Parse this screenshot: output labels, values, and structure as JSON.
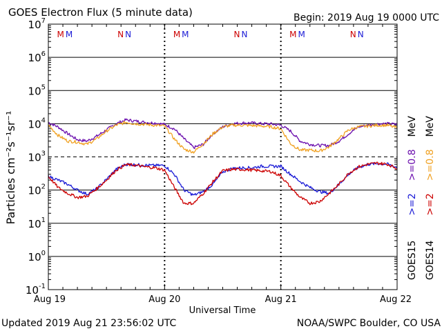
{
  "header": {
    "title": "GOES Electron Flux (5 minute data)",
    "begin": "Begin: 2019 Aug 19 0000 UTC"
  },
  "footer": {
    "updated": "Updated 2019 Aug 21 23:56:02 UTC",
    "credit": "NOAA/SWPC Boulder, CO USA"
  },
  "chart_data": {
    "type": "line",
    "title": "GOES Electron Flux (5 minute data)",
    "xlabel": "Universal Time",
    "ylabel": "Particles cm⁻²s⁻¹sr⁻¹",
    "y_scale": "log",
    "ylim": [
      0.1,
      10000000
    ],
    "xlim": [
      "2019-08-19 00:00",
      "2019-08-22 00:00"
    ],
    "x_ticks": [
      "Aug 19",
      "Aug 20",
      "Aug 21",
      "Aug 22"
    ],
    "y_ticks": [
      {
        "base": "10",
        "exp": "7"
      },
      {
        "base": "10",
        "exp": "6"
      },
      {
        "base": "10",
        "exp": "5"
      },
      {
        "base": "10",
        "exp": "4"
      },
      {
        "base": "10",
        "exp": "3"
      },
      {
        "base": "10",
        "exp": "2"
      },
      {
        "base": "10",
        "exp": "1"
      },
      {
        "base": "10",
        "exp": "0"
      },
      {
        "base": "10",
        "exp": "-1"
      }
    ],
    "threshold": {
      "value": 1000,
      "style": "dashed"
    },
    "grid": "horizontal at decades",
    "markers": [
      {
        "day": 0,
        "labels": [
          {
            "text": "M",
            "color": "#cc0000"
          },
          {
            "text": "M",
            "color": "#1a1ad6"
          }
        ],
        "hour": 3.4
      },
      {
        "day": 0,
        "labels": [
          {
            "text": "N",
            "color": "#cc0000"
          },
          {
            "text": "N",
            "color": "#1a1ad6"
          }
        ],
        "hour": 15.7
      },
      {
        "day": 1,
        "labels": [
          {
            "text": "M",
            "color": "#cc0000"
          },
          {
            "text": "M",
            "color": "#1a1ad6"
          }
        ],
        "hour": 3.4
      },
      {
        "day": 1,
        "labels": [
          {
            "text": "N",
            "color": "#cc0000"
          },
          {
            "text": "N",
            "color": "#1a1ad6"
          }
        ],
        "hour": 15.7
      },
      {
        "day": 2,
        "labels": [
          {
            "text": "M",
            "color": "#cc0000"
          },
          {
            "text": "M",
            "color": "#1a1ad6"
          }
        ],
        "hour": 3.4
      },
      {
        "day": 2,
        "labels": [
          {
            "text": "N",
            "color": "#cc0000"
          },
          {
            "text": "N",
            "color": "#1a1ad6"
          }
        ],
        "hour": 15.7
      }
    ],
    "legend": {
      "placement": "right",
      "columns": [
        {
          "label": "GOES15",
          "items": [
            {
              "text": ">=2",
              "color": "#1a1ad6"
            },
            {
              "text": ">=0.8",
              "color": "#6a0dad"
            },
            {
              "text": "MeV",
              "color": "#000000"
            }
          ]
        },
        {
          "label": "GOES14",
          "items": [
            {
              "text": ">=2",
              "color": "#cc0000"
            },
            {
              "text": ">=0.8",
              "color": "#f0a020"
            },
            {
              "text": "MeV",
              "color": "#000000"
            }
          ]
        }
      ]
    },
    "series": [
      {
        "name": "GOES15 >=0.8 MeV",
        "color": "#6a0dad",
        "x": [
          0,
          2,
          4,
          6,
          8,
          10,
          12,
          14,
          16,
          18,
          20,
          22,
          24,
          26,
          28,
          30,
          32,
          34,
          36,
          38,
          40,
          42,
          44,
          46,
          48,
          50,
          52,
          54,
          56,
          58,
          60,
          62,
          64,
          66,
          68,
          70,
          72
        ],
        "y": [
          11000,
          8000,
          5000,
          3300,
          3000,
          4200,
          6500,
          10000,
          13000,
          12000,
          11000,
          10500,
          9500,
          7000,
          3500,
          1900,
          2400,
          5000,
          8000,
          10000,
          10500,
          10500,
          10000,
          9800,
          9000,
          6000,
          3000,
          2400,
          2200,
          2200,
          3000,
          5000,
          8000,
          9000,
          9800,
          10000,
          9500
        ]
      },
      {
        "name": "GOES14 >=0.8 MeV",
        "color": "#f0a020",
        "x": [
          0,
          2,
          4,
          6,
          8,
          10,
          12,
          14,
          16,
          18,
          20,
          22,
          24,
          26,
          28,
          30,
          32,
          34,
          36,
          38,
          40,
          42,
          44,
          46,
          48,
          50,
          52,
          54,
          56,
          58,
          60,
          62,
          64,
          66,
          68,
          70,
          72
        ],
        "y": [
          9000,
          4500,
          3000,
          2800,
          2400,
          3500,
          6000,
          9000,
          11000,
          10000,
          9500,
          9000,
          8500,
          3500,
          1700,
          1400,
          2500,
          5000,
          8000,
          9000,
          9000,
          8800,
          8500,
          8000,
          7000,
          2500,
          1600,
          1600,
          1500,
          2000,
          3500,
          6500,
          8000,
          8500,
          9000,
          9000,
          7500
        ]
      },
      {
        "name": "GOES15 >=2 MeV",
        "color": "#1a1ad6",
        "x": [
          0,
          2,
          4,
          6,
          8,
          10,
          12,
          14,
          16,
          18,
          20,
          22,
          24,
          26,
          28,
          30,
          32,
          34,
          36,
          38,
          40,
          42,
          44,
          46,
          48,
          50,
          52,
          54,
          56,
          58,
          60,
          62,
          64,
          66,
          68,
          70,
          72
        ],
        "y": [
          260,
          200,
          150,
          100,
          75,
          110,
          210,
          420,
          600,
          580,
          560,
          550,
          550,
          300,
          100,
          70,
          90,
          150,
          350,
          450,
          470,
          470,
          520,
          520,
          520,
          300,
          180,
          120,
          90,
          80,
          150,
          300,
          480,
          600,
          630,
          600,
          480
        ]
      },
      {
        "name": "GOES14 >=2 MeV",
        "color": "#cc0000",
        "x": [
          0,
          2,
          4,
          6,
          8,
          10,
          12,
          14,
          16,
          18,
          20,
          22,
          24,
          26,
          28,
          30,
          32,
          34,
          36,
          38,
          40,
          42,
          44,
          46,
          48,
          50,
          52,
          54,
          56,
          58,
          60,
          62,
          64,
          66,
          68,
          70,
          72
        ],
        "y": [
          260,
          120,
          80,
          60,
          65,
          110,
          200,
          400,
          580,
          560,
          500,
          470,
          400,
          120,
          40,
          40,
          80,
          180,
          380,
          420,
          420,
          400,
          380,
          360,
          270,
          120,
          60,
          40,
          45,
          80,
          150,
          320,
          500,
          600,
          650,
          600,
          450
        ]
      }
    ]
  }
}
